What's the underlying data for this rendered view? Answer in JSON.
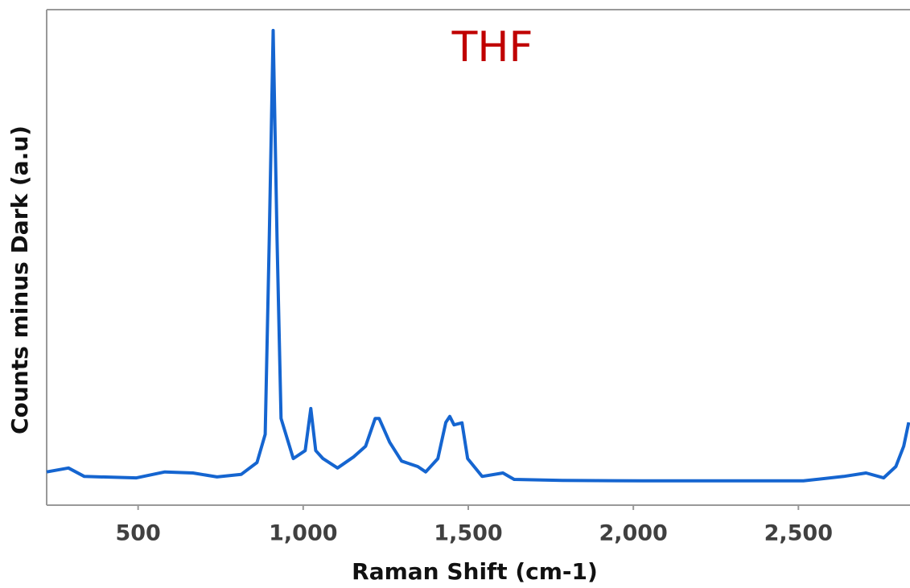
{
  "chart_data": {
    "type": "line",
    "title": "THF",
    "x_label": "Raman Shift (cm-1)",
    "y_label": "Counts minus Dark (a.u)",
    "xlim": [
      223,
      2838
    ],
    "ylim": [
      0,
      100
    ],
    "xticks": [
      500,
      {
        "value": 1000,
        "label": "1,000"
      },
      {
        "value": 1500,
        "label": "1,500"
      },
      {
        "value": 2000,
        "label": "2,000"
      },
      {
        "value": 2500,
        "label": "2,500"
      }
    ],
    "x": [
      223,
      289,
      337,
      495,
      581,
      666,
      739,
      812,
      860,
      885,
      897,
      909,
      921,
      933,
      970,
      1006,
      1023,
      1038,
      1060,
      1104,
      1152,
      1189,
      1218,
      1230,
      1262,
      1298,
      1347,
      1371,
      1408,
      1432,
      1444,
      1457,
      1481,
      1498,
      1542,
      1605,
      1639,
      1785,
      2028,
      2272,
      2515,
      2637,
      2705,
      2758,
      2795,
      2819,
      2834
    ],
    "series": [
      {
        "color": "#1565d0",
        "values": [
          6.7,
          7.5,
          5.8,
          5.5,
          6.7,
          6.5,
          5.7,
          6.2,
          8.6,
          14.3,
          53.2,
          95.8,
          53.2,
          17.5,
          9.4,
          11,
          19.5,
          11,
          9.4,
          7.5,
          9.7,
          11.9,
          17.5,
          17.5,
          12.7,
          8.9,
          7.8,
          6.7,
          9.4,
          16.7,
          17.9,
          16.2,
          16.6,
          9.4,
          5.8,
          6.5,
          5.2,
          5.0,
          4.9,
          4.9,
          4.9,
          5.8,
          6.5,
          5.5,
          7.8,
          11.9,
          16.7
        ]
      }
    ]
  }
}
